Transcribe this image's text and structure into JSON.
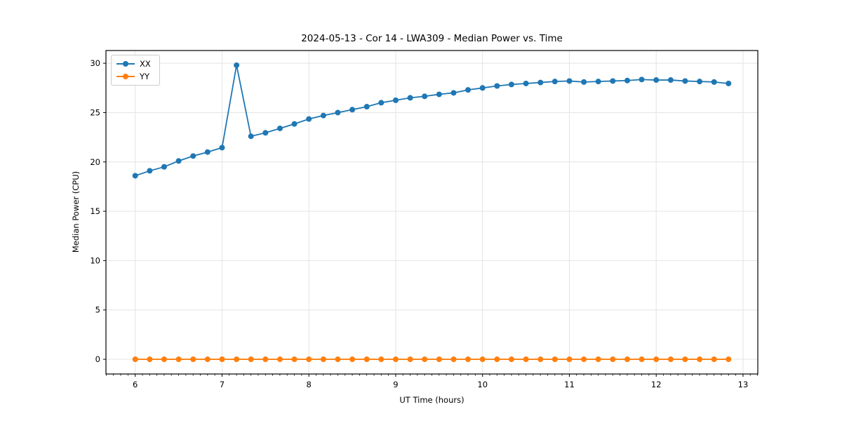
{
  "chart_data": {
    "type": "line",
    "title": "2024-05-13 - Cor 14 - LWA309 - Median Power vs. Time",
    "xlabel": "UT Time (hours)",
    "ylabel": "Median Power (CPU)",
    "xlim": [
      5.663,
      13.17
    ],
    "ylim": [
      -1.49,
      31.29
    ],
    "x_ticks": [
      6,
      7,
      8,
      9,
      10,
      11,
      12,
      13
    ],
    "y_ticks": [
      0,
      5,
      10,
      15,
      20,
      25,
      30
    ],
    "minor_tick_step": 0.08333,
    "grid": true,
    "grid_color": "#e4e4e4",
    "spine_color": "#000000",
    "legend_position": "upper left",
    "x": [
      6.0,
      6.167,
      6.333,
      6.5,
      6.667,
      6.833,
      7.0,
      7.167,
      7.333,
      7.5,
      7.667,
      7.833,
      8.0,
      8.167,
      8.333,
      8.5,
      8.667,
      8.833,
      9.0,
      9.167,
      9.333,
      9.5,
      9.667,
      9.833,
      10.0,
      10.167,
      10.333,
      10.5,
      10.667,
      10.833,
      11.0,
      11.167,
      11.333,
      11.5,
      11.667,
      11.833,
      12.0,
      12.167,
      12.333,
      12.5,
      12.667,
      12.833
    ],
    "series": [
      {
        "name": "XX",
        "color": "#1f77b4",
        "marker": "circle",
        "values": [
          18.6,
          19.1,
          19.5,
          20.1,
          20.6,
          21.0,
          21.45,
          29.8,
          22.6,
          22.95,
          23.4,
          23.85,
          24.35,
          24.7,
          25.0,
          25.3,
          25.6,
          26.0,
          26.25,
          26.5,
          26.65,
          26.85,
          27.0,
          27.3,
          27.5,
          27.7,
          27.85,
          27.95,
          28.05,
          28.15,
          28.2,
          28.1,
          28.15,
          28.2,
          28.25,
          28.35,
          28.3,
          28.3,
          28.2,
          28.15,
          28.1,
          27.95
        ]
      },
      {
        "name": "YY",
        "color": "#ff7f0e",
        "marker": "circle",
        "values": [
          0,
          0,
          0,
          0,
          0,
          0,
          0,
          0,
          0,
          0,
          0,
          0,
          0,
          0,
          0,
          0,
          0,
          0,
          0,
          0,
          0,
          0,
          0,
          0,
          0,
          0,
          0,
          0,
          0,
          0,
          0,
          0,
          0,
          0,
          0,
          0,
          0,
          0,
          0,
          0,
          0,
          0
        ]
      }
    ]
  }
}
